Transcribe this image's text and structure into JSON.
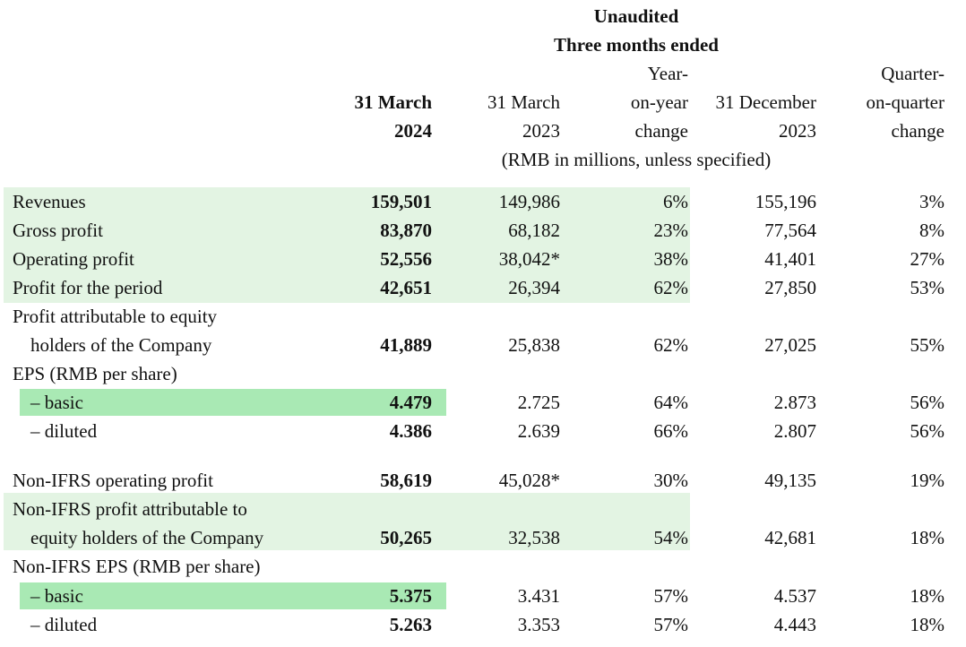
{
  "header": {
    "unaudited": "Unaudited",
    "period": "Three months ended",
    "col1": [
      "31 March",
      "2024"
    ],
    "col2": [
      "31 March",
      "2023"
    ],
    "col3": [
      "Year-",
      "on-year",
      "change"
    ],
    "col4": [
      "31 December",
      "2023"
    ],
    "col5": [
      "Quarter-",
      "on-quarter",
      "change"
    ],
    "units": "(RMB in millions, unless specified)"
  },
  "rows": [
    {
      "label": "Revenues",
      "v2024": "159,501",
      "v2023": "149,986",
      "yoy": "6%",
      "dec": "155,196",
      "qoq": "3%"
    },
    {
      "label": "Gross profit",
      "v2024": "83,870",
      "v2023": "68,182",
      "yoy": "23%",
      "dec": "77,564",
      "qoq": "8%"
    },
    {
      "label": "Operating profit",
      "v2024": "52,556",
      "v2023": "38,042*",
      "yoy": "38%",
      "dec": "41,401",
      "qoq": "27%"
    },
    {
      "label": "Profit for the period",
      "v2024": "42,651",
      "v2023": "26,394",
      "yoy": "62%",
      "dec": "27,850",
      "qoq": "53%"
    },
    {
      "label": "Profit attributable to equity",
      "label2": "holders of the Company",
      "v2024": "41,889",
      "v2023": "25,838",
      "yoy": "62%",
      "dec": "27,025",
      "qoq": "55%"
    },
    {
      "label": "EPS (RMB per share)"
    },
    {
      "label": "– basic",
      "v2024": "4.479",
      "v2023": "2.725",
      "yoy": "64%",
      "dec": "2.873",
      "qoq": "56%"
    },
    {
      "label": "– diluted",
      "v2024": "4.386",
      "v2023": "2.639",
      "yoy": "66%",
      "dec": "2.807",
      "qoq": "56%"
    },
    {
      "label": "Non-IFRS operating profit",
      "v2024": "58,619",
      "v2023": "45,028*",
      "yoy": "30%",
      "dec": "49,135",
      "qoq": "19%"
    },
    {
      "label": "Non-IFRS profit attributable to",
      "label2": "equity holders of the Company",
      "v2024": "50,265",
      "v2023": "32,538",
      "yoy": "54%",
      "dec": "42,681",
      "qoq": "18%"
    },
    {
      "label": "Non-IFRS EPS (RMB per share)"
    },
    {
      "label": "– basic",
      "v2024": "5.375",
      "v2023": "3.431",
      "yoy": "57%",
      "dec": "4.537",
      "qoq": "18%"
    },
    {
      "label": "– diluted",
      "v2024": "5.263",
      "v2023": "3.353",
      "yoy": "57%",
      "dec": "4.443",
      "qoq": "18%"
    }
  ]
}
